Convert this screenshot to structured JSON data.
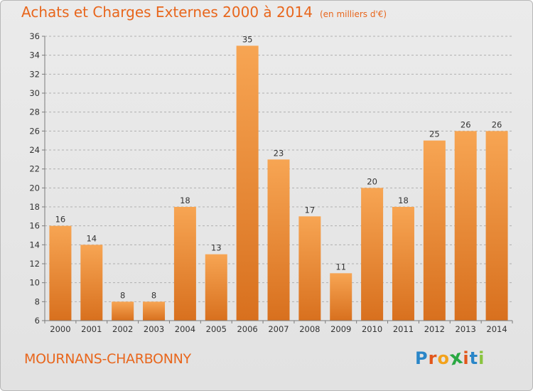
{
  "title": "Achats et Charges Externes 2000 à 2014",
  "unit": "(en milliers d'€)",
  "location": "MOURNANS-CHARBONNY",
  "logo": {
    "letters": [
      "P",
      "r",
      "o",
      "x",
      "i",
      "t",
      "i"
    ],
    "colors": [
      "#2a86c8",
      "#e2561b",
      "#f3a21b",
      "#2aa843",
      "#e2561b",
      "#2a86c8",
      "#8ac43f"
    ]
  },
  "colors": {
    "title": "#e8661c",
    "bar_top": "#f7a553",
    "bar_bottom": "#d8701e",
    "axis": "#7a7a7a",
    "grid": "#b0b0b0"
  },
  "chart_data": {
    "type": "bar",
    "categories": [
      "2000",
      "2001",
      "2002",
      "2003",
      "2004",
      "2005",
      "2006",
      "2007",
      "2008",
      "2009",
      "2010",
      "2011",
      "2012",
      "2013",
      "2014"
    ],
    "values": [
      16,
      14,
      8,
      8,
      18,
      13,
      35,
      23,
      17,
      11,
      20,
      18,
      25,
      26,
      26
    ],
    "ylim": [
      6,
      36
    ],
    "yticks": [
      6,
      8,
      10,
      12,
      14,
      16,
      18,
      20,
      22,
      24,
      26,
      28,
      30,
      32,
      34,
      36
    ],
    "grid": "horizontal-dashed",
    "data_labels": true
  }
}
